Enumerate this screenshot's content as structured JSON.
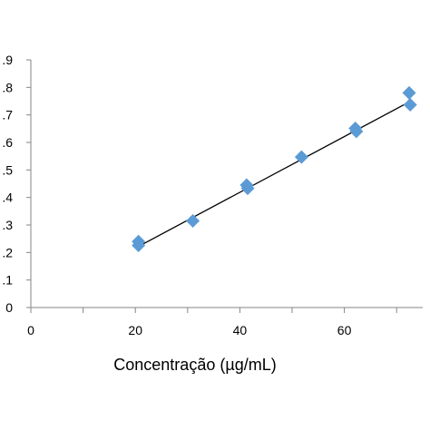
{
  "chart_data": {
    "type": "scatter",
    "xlabel": "Concentração (µg/mL)",
    "ylabel": "",
    "xlim": [
      0,
      75
    ],
    "ylim": [
      0,
      0.9
    ],
    "x_ticks": [
      {
        "value": 0,
        "label": "0"
      },
      {
        "value": 20,
        "label": "20"
      },
      {
        "value": 40,
        "label": "40"
      },
      {
        "value": 60,
        "label": "60"
      }
    ],
    "y_ticks": [
      {
        "value": 0,
        "label": "0"
      },
      {
        "value": 0.1,
        "label": ".1"
      },
      {
        "value": 0.2,
        "label": ".2"
      },
      {
        "value": 0.3,
        "label": ".3"
      },
      {
        "value": 0.4,
        "label": ".4"
      },
      {
        "value": 0.5,
        "label": ".5"
      },
      {
        "value": 0.6,
        "label": ".6"
      },
      {
        "value": 0.7,
        "label": ".7"
      },
      {
        "value": 0.8,
        "label": ".8"
      },
      {
        "value": 0.9,
        "label": ".9"
      }
    ],
    "points": [
      {
        "x": 20.6,
        "y": 0.24
      },
      {
        "x": 20.6,
        "y": 0.226
      },
      {
        "x": 31.0,
        "y": 0.315
      },
      {
        "x": 41.3,
        "y": 0.445
      },
      {
        "x": 41.5,
        "y": 0.433
      },
      {
        "x": 51.8,
        "y": 0.547
      },
      {
        "x": 62.1,
        "y": 0.651
      },
      {
        "x": 62.3,
        "y": 0.64
      },
      {
        "x": 72.4,
        "y": 0.78
      },
      {
        "x": 72.6,
        "y": 0.737
      }
    ],
    "trendline": {
      "x": [
        20.6,
        72.5
      ],
      "y": [
        0.222,
        0.748
      ]
    },
    "grid": false,
    "marker_color": "#5B9BD5",
    "line_color": "#000000",
    "axis_color": "#868686"
  }
}
